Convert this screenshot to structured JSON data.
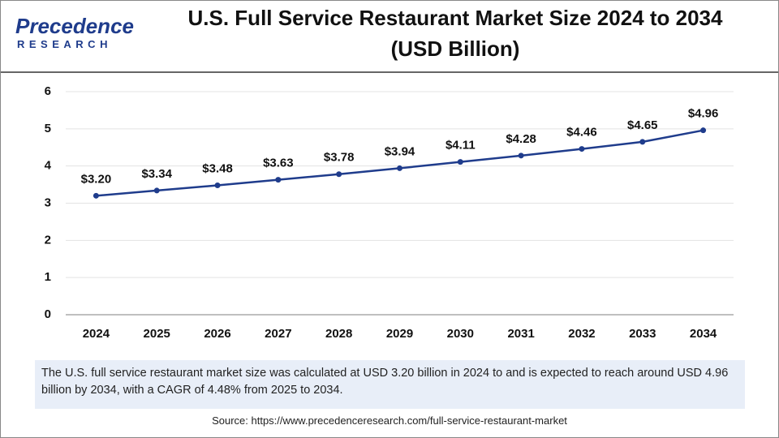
{
  "logo": {
    "name": "Precedence",
    "tagline": "RESEARCH"
  },
  "chart_data": {
    "type": "line",
    "title": "U.S. Full Service Restaurant Market Size 2024 to 2034",
    "subtitle": "(USD Billion)",
    "categories": [
      "2024",
      "2025",
      "2026",
      "2027",
      "2028",
      "2029",
      "2030",
      "2031",
      "2032",
      "2033",
      "2034"
    ],
    "values": [
      3.2,
      3.34,
      3.48,
      3.63,
      3.78,
      3.94,
      4.11,
      4.28,
      4.46,
      4.65,
      4.96
    ],
    "value_labels": [
      "$3.20",
      "$3.34",
      "$3.48",
      "$3.63",
      "$3.78",
      "$3.94",
      "$4.11",
      "$4.28",
      "$4.46",
      "$4.65",
      "$4.96"
    ],
    "color": "#1f3c8c",
    "ylim": [
      0,
      6
    ],
    "yticks": [
      0,
      1,
      2,
      3,
      4,
      5,
      6
    ],
    "grid": true
  },
  "description": "The U.S. full service restaurant market size was calculated at USD 3.20 billion in 2024 to and is expected to reach around USD 4.96 billion by 2034, with a CAGR of 4.48% from 2025 to 2034.",
  "source": "Source: https://www.precedenceresearch.com/full-service-restaurant-market"
}
